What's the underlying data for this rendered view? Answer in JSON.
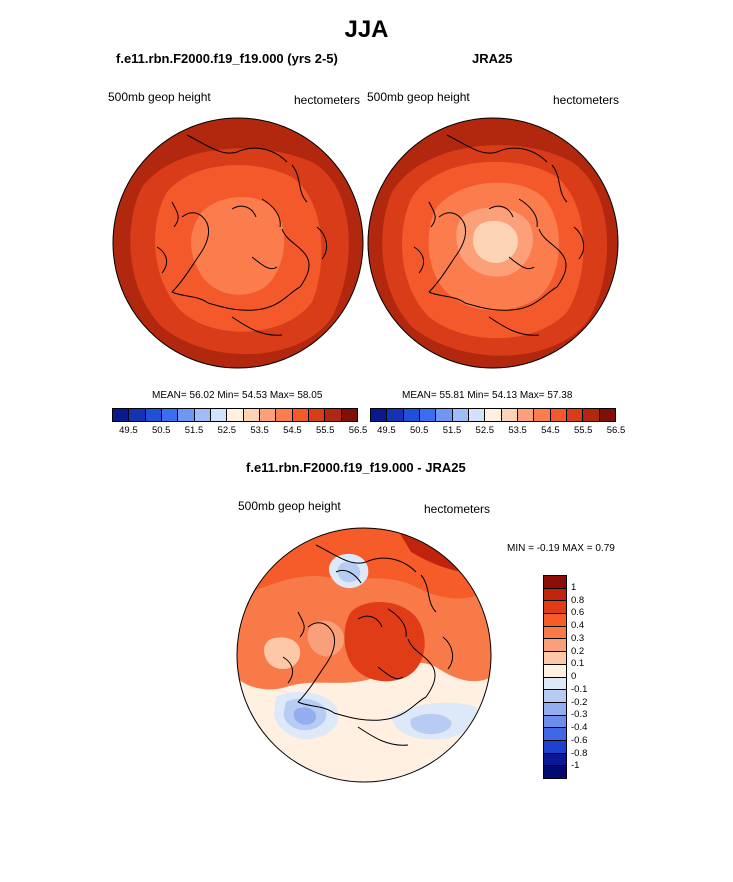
{
  "figure": {
    "title": "JJA"
  },
  "chart_data": [
    {
      "type": "heatmap",
      "projection": "polar-stereographic",
      "title": "f.e11.rbn.F2000.f19_f19.000 (yrs 2-5)",
      "field_label": "500mb geop height",
      "units": "hectometers",
      "stats": {
        "mean": 56.02,
        "min": 54.53,
        "max": 58.05
      },
      "stats_text": "MEAN=  56.02  Min=  54.53  Max=  58.05",
      "colorbar": {
        "ticks": [
          "49.5",
          "50.5",
          "51.5",
          "52.5",
          "53.5",
          "54.5",
          "55.5",
          "56.5"
        ],
        "colors": [
          "#0a1a8c",
          "#1432b4",
          "#1e50dc",
          "#3a6ef0",
          "#6e96f5",
          "#a0bcf8",
          "#d2e2fb",
          "#fff0e2",
          "#fdd3b6",
          "#fca07a",
          "#fb7d4e",
          "#f3592a",
          "#d83c18",
          "#b2280e",
          "#7f0f07"
        ]
      }
    },
    {
      "type": "heatmap",
      "projection": "polar-stereographic",
      "title": "JRA25",
      "field_label": "500mb geop height",
      "units": "hectometers",
      "stats": {
        "mean": 55.81,
        "min": 54.13,
        "max": 57.38
      },
      "stats_text": "MEAN=  55.81  Min=  54.13  Max=  57.38",
      "colorbar": {
        "ticks": [
          "49.5",
          "50.5",
          "51.5",
          "52.5",
          "53.5",
          "54.5",
          "55.5",
          "56.5"
        ],
        "colors": [
          "#0a1a8c",
          "#1432b4",
          "#1e50dc",
          "#3a6ef0",
          "#6e96f5",
          "#a0bcf8",
          "#d2e2fb",
          "#fff0e2",
          "#fdd3b6",
          "#fca07a",
          "#fb7d4e",
          "#f3592a",
          "#d83c18",
          "#b2280e",
          "#7f0f07"
        ]
      }
    },
    {
      "type": "heatmap",
      "projection": "polar-stereographic",
      "title": "f.e11.rbn.F2000.f19_f19.000 - JRA25",
      "field_label": "500mb geop height",
      "units": "hectometers",
      "stats": {
        "min": -0.19,
        "max": 0.79
      },
      "stats_text": "MIN =  -0.19 MAX =   0.79",
      "colorbar": {
        "ticks": [
          "1",
          "0.8",
          "0.6",
          "0.4",
          "0.3",
          "0.2",
          "0.1",
          "0",
          "-0.1",
          "-0.2",
          "-0.3",
          "-0.4",
          "-0.6",
          "-0.8",
          "-1"
        ],
        "colors": [
          "#8c0c08",
          "#c0240e",
          "#e03c18",
          "#f55c2a",
          "#f77a48",
          "#f9a07a",
          "#fcc8a8",
          "#fff0e2",
          "#dde8f9",
          "#b7cbf3",
          "#92aeef",
          "#6b8eec",
          "#4068e6",
          "#1e3fcf",
          "#0a1896",
          "#000a70"
        ]
      }
    }
  ]
}
